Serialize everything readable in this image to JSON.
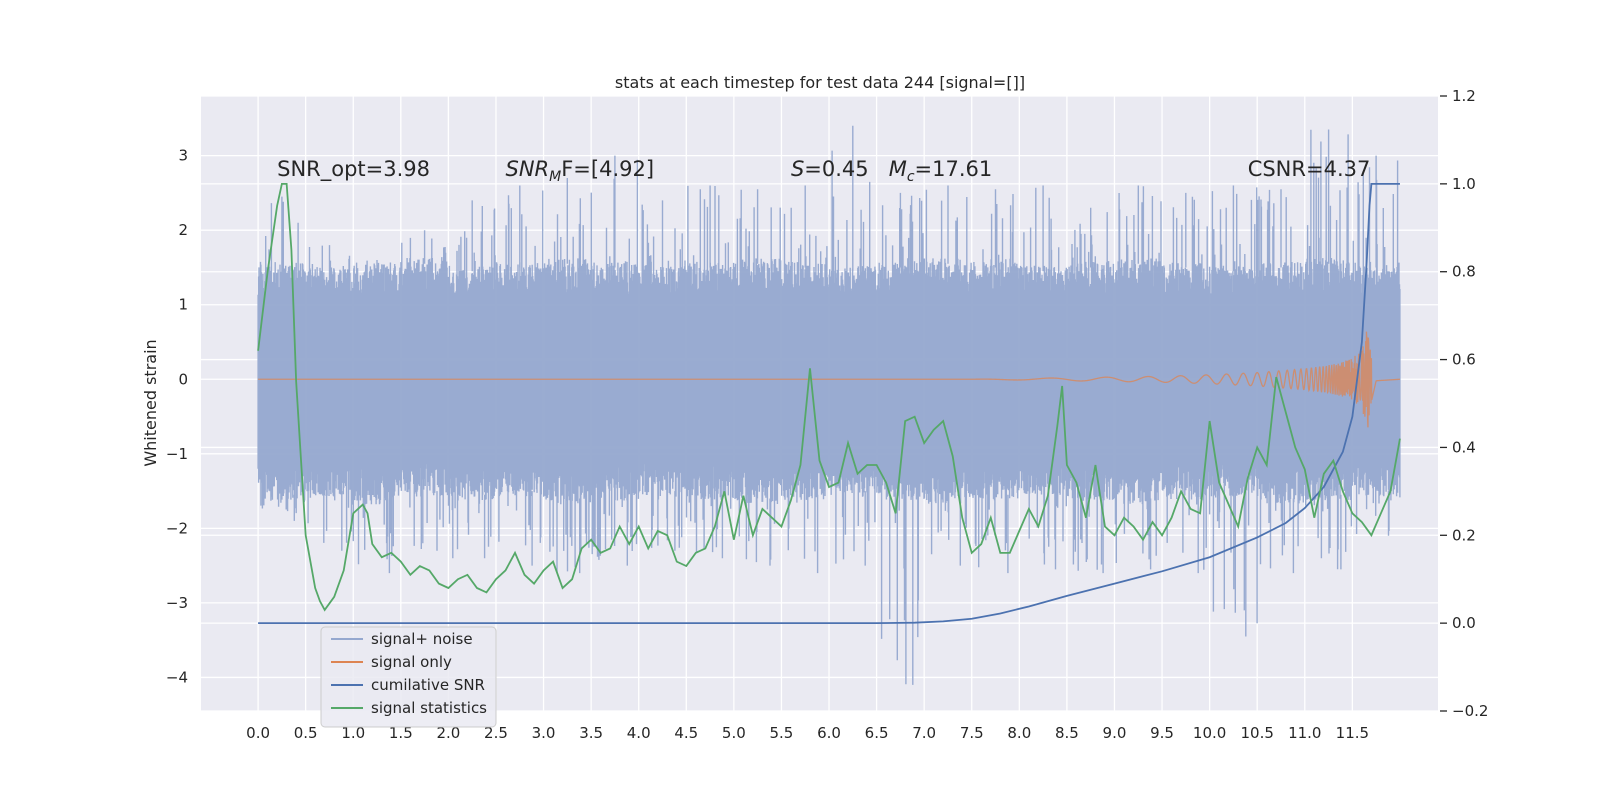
{
  "chart_data": {
    "type": "line",
    "title": "stats at each timestep for test data 244 [signal=[]]",
    "ylabel": "Whitened strain",
    "xlabel": "",
    "xlim": [
      -0.6,
      12.4
    ],
    "ylim": [
      -4.45,
      3.8
    ],
    "y2lim": [
      -0.2,
      1.2
    ],
    "grid": true,
    "x_ticks": [
      0.0,
      0.5,
      1.0,
      1.5,
      2.0,
      2.5,
      3.0,
      3.5,
      4.0,
      4.5,
      5.0,
      5.5,
      6.0,
      6.5,
      7.0,
      7.5,
      8.0,
      8.5,
      9.0,
      9.5,
      10.0,
      10.5,
      11.0,
      11.5
    ],
    "x_tick_labels": [
      "0.0",
      "0.5",
      "1.0",
      "1.5",
      "2.0",
      "2.5",
      "3.0",
      "3.5",
      "4.0",
      "4.5",
      "5.0",
      "5.5",
      "6.0",
      "6.5",
      "7.0",
      "7.5",
      "8.0",
      "8.5",
      "9.0",
      "9.5",
      "10.0",
      "10.5",
      "11.0",
      "11.5"
    ],
    "y_ticks": [
      -4,
      -3,
      -2,
      -1,
      0,
      1,
      2,
      3
    ],
    "y_tick_labels": [
      "−4",
      "−3",
      "−2",
      "−1",
      "0",
      "1",
      "2",
      "3"
    ],
    "y2_ticks": [
      -0.2,
      0.0,
      0.2,
      0.4,
      0.6,
      0.8,
      1.0,
      1.2
    ],
    "y2_tick_labels": [
      "−0.2",
      "0.0",
      "0.2",
      "0.4",
      "0.6",
      "0.8",
      "1.0",
      "1.2"
    ],
    "legend_position": "lower-left",
    "annotations": [
      {
        "text": "SNR_opt=3.98",
        "x": 0.2,
        "y": 2.73
      },
      {
        "text": "SNR",
        "sub": "M",
        "after": "F=[4.92]",
        "italic": true,
        "x": 2.6,
        "y": 2.73
      },
      {
        "text": "S",
        "after": "=0.45   ",
        "text2": "M",
        "sub2": "c",
        "after2": "=17.61",
        "italic": true,
        "x": 5.6,
        "y": 2.73
      },
      {
        "text": "CSNR=4.37",
        "x": 10.4,
        "y": 2.73
      }
    ],
    "series": [
      {
        "name": "signal+ noise",
        "axis": "left",
        "color": "#95a8cf",
        "style": "dense-noise",
        "x_range": [
          0.0,
          12.0
        ],
        "band_low": [
          -1.55,
          -1.5,
          -1.6,
          -1.5,
          -1.55,
          -1.5,
          -1.6,
          -1.55,
          -1.5,
          -1.55,
          -1.6,
          -1.55,
          -1.5,
          -1.55,
          -1.6,
          -1.55,
          -1.5,
          -1.55,
          -1.6,
          -1.55,
          -1.5,
          -1.6,
          -1.55,
          -1.5,
          -1.55
        ],
        "band_high": [
          1.5,
          1.45,
          1.5,
          1.55,
          1.45,
          1.5,
          1.55,
          1.5,
          1.45,
          1.5,
          1.55,
          1.5,
          1.45,
          1.5,
          1.55,
          1.5,
          1.45,
          1.5,
          1.55,
          1.5,
          1.45,
          1.5,
          1.55,
          1.5,
          1.5
        ],
        "spike_max": [
          2.45,
          1.8,
          1.6,
          2.0,
          2.4,
          2.6,
          2.7,
          3.0,
          2.4,
          2.6,
          2.55,
          2.6,
          3.4,
          2.5,
          2.6,
          2.55,
          2.6,
          2.3,
          2.6,
          2.5,
          2.6,
          2.55,
          3.35,
          3.0
        ],
        "spike_min": [
          -1.9,
          -2.3,
          -2.6,
          -2.3,
          -2.4,
          -2.5,
          -2.6,
          -2.5,
          -2.3,
          -2.4,
          -2.5,
          -2.6,
          -2.5,
          -4.1,
          -2.5,
          -2.6,
          -2.55,
          -2.6,
          -2.55,
          -2.6,
          -3.45,
          -2.6,
          -2.55,
          -2.1
        ]
      },
      {
        "name": "signal only",
        "axis": "left",
        "color": "#dd8452",
        "style": "chirp",
        "x_range": [
          0.0,
          12.0
        ],
        "x": [
          0.0,
          7.5,
          8.5,
          9.5,
          10.0,
          10.5,
          11.0,
          11.3,
          11.5,
          11.6,
          11.66,
          11.7,
          11.75,
          12.0
        ],
        "envelope": [
          0.0,
          0.0,
          0.02,
          0.04,
          0.06,
          0.09,
          0.14,
          0.2,
          0.28,
          0.4,
          0.7,
          0.3,
          0.02,
          0.0
        ]
      },
      {
        "name": "cumilative SNR",
        "axis": "right",
        "color": "#4c72b0",
        "x": [
          0.0,
          6.5,
          6.9,
          7.2,
          7.5,
          7.8,
          8.1,
          8.5,
          9.0,
          9.5,
          10.0,
          10.5,
          10.8,
          11.0,
          11.2,
          11.4,
          11.5,
          11.6,
          11.65,
          11.68,
          11.7,
          12.0
        ],
        "values": [
          0.0,
          0.0,
          0.001,
          0.004,
          0.01,
          0.022,
          0.038,
          0.062,
          0.09,
          0.118,
          0.15,
          0.195,
          0.228,
          0.262,
          0.31,
          0.39,
          0.47,
          0.64,
          0.82,
          0.95,
          1.0,
          1.0
        ]
      },
      {
        "name": "signal statistics",
        "axis": "right",
        "color": "#55a868",
        "x": [
          0.0,
          0.1,
          0.2,
          0.25,
          0.3,
          0.35,
          0.4,
          0.5,
          0.6,
          0.65,
          0.7,
          0.8,
          0.9,
          1.0,
          1.1,
          1.15,
          1.2,
          1.3,
          1.4,
          1.5,
          1.6,
          1.7,
          1.8,
          1.9,
          2.0,
          2.1,
          2.2,
          2.3,
          2.4,
          2.5,
          2.6,
          2.7,
          2.8,
          2.9,
          3.0,
          3.1,
          3.2,
          3.3,
          3.4,
          3.5,
          3.6,
          3.7,
          3.8,
          3.9,
          4.0,
          4.1,
          4.2,
          4.3,
          4.4,
          4.5,
          4.6,
          4.7,
          4.8,
          4.9,
          5.0,
          5.1,
          5.2,
          5.3,
          5.4,
          5.5,
          5.6,
          5.7,
          5.8,
          5.9,
          6.0,
          6.1,
          6.2,
          6.3,
          6.4,
          6.5,
          6.6,
          6.7,
          6.8,
          6.9,
          7.0,
          7.1,
          7.2,
          7.3,
          7.4,
          7.5,
          7.6,
          7.7,
          7.8,
          7.9,
          8.0,
          8.1,
          8.2,
          8.3,
          8.4,
          8.45,
          8.5,
          8.6,
          8.7,
          8.8,
          8.9,
          9.0,
          9.1,
          9.2,
          9.3,
          9.4,
          9.5,
          9.6,
          9.7,
          9.8,
          9.9,
          10.0,
          10.1,
          10.2,
          10.3,
          10.4,
          10.5,
          10.6,
          10.7,
          10.8,
          10.9,
          11.0,
          11.1,
          11.2,
          11.3,
          11.4,
          11.5,
          11.6,
          11.7,
          11.8,
          11.9,
          12.0
        ],
        "values": [
          0.62,
          0.8,
          0.95,
          1.0,
          1.0,
          0.85,
          0.55,
          0.2,
          0.08,
          0.05,
          0.03,
          0.06,
          0.12,
          0.25,
          0.27,
          0.25,
          0.18,
          0.15,
          0.16,
          0.14,
          0.11,
          0.13,
          0.12,
          0.09,
          0.08,
          0.1,
          0.11,
          0.08,
          0.07,
          0.1,
          0.12,
          0.16,
          0.11,
          0.09,
          0.12,
          0.14,
          0.08,
          0.1,
          0.17,
          0.19,
          0.16,
          0.17,
          0.22,
          0.18,
          0.22,
          0.17,
          0.21,
          0.2,
          0.14,
          0.13,
          0.16,
          0.17,
          0.22,
          0.3,
          0.19,
          0.29,
          0.2,
          0.26,
          0.24,
          0.22,
          0.28,
          0.36,
          0.58,
          0.37,
          0.31,
          0.32,
          0.41,
          0.34,
          0.36,
          0.36,
          0.32,
          0.25,
          0.46,
          0.47,
          0.41,
          0.44,
          0.46,
          0.38,
          0.24,
          0.16,
          0.18,
          0.24,
          0.16,
          0.16,
          0.21,
          0.26,
          0.22,
          0.29,
          0.45,
          0.54,
          0.36,
          0.32,
          0.24,
          0.36,
          0.22,
          0.2,
          0.24,
          0.22,
          0.19,
          0.23,
          0.2,
          0.24,
          0.3,
          0.26,
          0.25,
          0.46,
          0.32,
          0.27,
          0.22,
          0.33,
          0.4,
          0.36,
          0.56,
          0.48,
          0.4,
          0.35,
          0.24,
          0.34,
          0.37,
          0.3,
          0.25,
          0.23,
          0.2,
          0.25,
          0.3,
          0.42
        ]
      }
    ]
  }
}
